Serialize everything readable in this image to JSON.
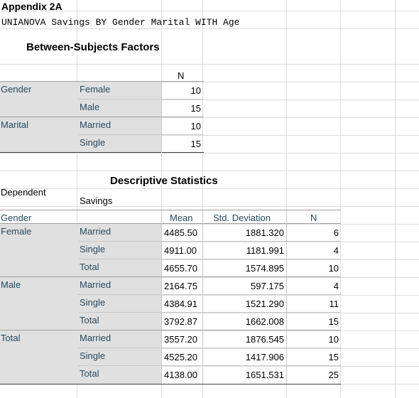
{
  "sheet": {
    "title": "Appendix 2A",
    "command": "UNIANOVA Savings BY Gender Marital WITH Age"
  },
  "factors": {
    "heading": "Between-Subjects Factors",
    "n_header": "N",
    "groups": [
      {
        "name": "Gender",
        "levels": [
          {
            "label": "Female",
            "n": "10"
          },
          {
            "label": "Male",
            "n": "15"
          }
        ]
      },
      {
        "name": "Marital",
        "levels": [
          {
            "label": "Married",
            "n": "10"
          },
          {
            "label": "Single",
            "n": "15"
          }
        ]
      }
    ]
  },
  "descriptives": {
    "heading": "Descriptive Statistics",
    "dep_label": "Dependent Variable:",
    "dep_value": "Savings",
    "gender_header": "Gender",
    "col_mean": "Mean",
    "col_sd": "Std. Deviation",
    "col_n": "N",
    "groups": [
      {
        "gender": "Female",
        "rows": [
          {
            "label": "Married",
            "mean": "4485.50",
            "sd": "1881.320",
            "n": "6"
          },
          {
            "label": "Single",
            "mean": "4911.00",
            "sd": "1181.991",
            "n": "4"
          },
          {
            "label": "Total",
            "mean": "4655.70",
            "sd": "1574.895",
            "n": "10"
          }
        ]
      },
      {
        "gender": "Male",
        "rows": [
          {
            "label": "Married",
            "mean": "2164.75",
            "sd": "597.175",
            "n": "4"
          },
          {
            "label": "Single",
            "mean": "4384.91",
            "sd": "1521.290",
            "n": "11"
          },
          {
            "label": "Total",
            "mean": "3792.87",
            "sd": "1662.008",
            "n": "15"
          }
        ]
      },
      {
        "gender": "Total",
        "rows": [
          {
            "label": "Married",
            "mean": "3557.20",
            "sd": "1876.545",
            "n": "10"
          },
          {
            "label": "Single",
            "mean": "4525.20",
            "sd": "1417.906",
            "n": "15"
          },
          {
            "label": "Total",
            "mean": "4138.00",
            "sd": "1651.531",
            "n": "25"
          }
        ]
      }
    ]
  }
}
